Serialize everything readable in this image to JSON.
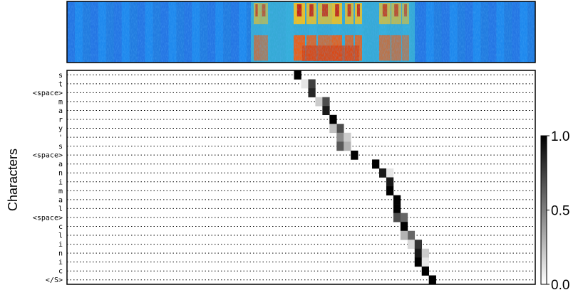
{
  "chart_data": [
    {
      "type": "heatmap",
      "name": "spectrogram",
      "title": "",
      "xlabel": "",
      "ylabel": "",
      "colormap": "jet",
      "description_free": true
    },
    {
      "type": "heatmap",
      "name": "attention-alignment",
      "title": "",
      "xlabel": "",
      "ylabel": "Characters",
      "characters": [
        "s",
        "t",
        "<space>",
        "m",
        "a",
        "r",
        "y",
        "'",
        "s",
        "<space>",
        "a",
        "n",
        "i",
        "m",
        "a",
        "l",
        "<space>",
        "c",
        "l",
        "i",
        "n",
        "i",
        "c",
        "</S>"
      ],
      "n_frames": 66,
      "alignment": [
        [
          [
            32,
            1.0
          ]
        ],
        [
          [
            33,
            0.1
          ],
          [
            34,
            0.75
          ]
        ],
        [
          [
            34,
            0.85
          ]
        ],
        [
          [
            35,
            0.2
          ],
          [
            36,
            0.7
          ]
        ],
        [
          [
            36,
            0.9
          ]
        ],
        [
          [
            37,
            1.0
          ]
        ],
        [
          [
            38,
            0.7
          ],
          [
            37,
            0.25
          ]
        ],
        [
          [
            38,
            0.45
          ],
          [
            39,
            0.2
          ]
        ],
        [
          [
            38,
            0.65
          ],
          [
            39,
            0.3
          ]
        ],
        [
          [
            40,
            1.0
          ]
        ],
        [
          [
            43,
            1.0
          ]
        ],
        [
          [
            44,
            0.9
          ],
          [
            45,
            0.1
          ]
        ],
        [
          [
            45,
            0.9
          ]
        ],
        [
          [
            45,
            1.0
          ]
        ],
        [
          [
            46,
            1.0
          ]
        ],
        [
          [
            46,
            1.0
          ]
        ],
        [
          [
            46,
            0.7
          ],
          [
            47,
            0.6
          ]
        ],
        [
          [
            47,
            1.0
          ]
        ],
        [
          [
            48,
            0.6
          ],
          [
            47,
            0.3
          ]
        ],
        [
          [
            48,
            0.15
          ],
          [
            49,
            0.8
          ]
        ],
        [
          [
            49,
            0.9
          ],
          [
            50,
            0.2
          ]
        ],
        [
          [
            49,
            1.0
          ],
          [
            50,
            0.1
          ]
        ],
        [
          [
            50,
            1.0
          ]
        ],
        [
          [
            51,
            1.0
          ]
        ]
      ],
      "colorbar": {
        "min": 0.0,
        "max": 1.0,
        "ticks": [
          "1.0",
          "0.5",
          "0.0"
        ],
        "colormap": "gray_r"
      }
    }
  ]
}
